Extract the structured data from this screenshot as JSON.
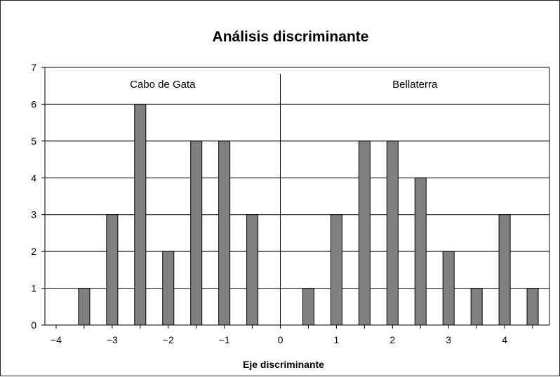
{
  "chart_data": {
    "type": "bar",
    "title": "Análisis discriminante",
    "xlabel": "Eje discriminante",
    "ylabel": "",
    "ylim": [
      0,
      7
    ],
    "xlim": [
      -4.2,
      4.8
    ],
    "x_ticks": [
      -4,
      -3,
      -2,
      -1,
      0,
      1,
      2,
      3,
      4
    ],
    "x_tick_labels": [
      "−4",
      "−3",
      "−2",
      "−1",
      "0",
      "1",
      "2",
      "3",
      "4"
    ],
    "y_ticks": [
      0,
      1,
      2,
      3,
      4,
      5,
      6,
      7
    ],
    "y_tick_labels": [
      "0",
      "1",
      "2",
      "3",
      "4",
      "5",
      "6",
      "7"
    ],
    "grid": "horizontal",
    "bar_color": "#808080",
    "groups": [
      {
        "label": "Cabo de Gata",
        "range": [
          -4.2,
          0
        ]
      },
      {
        "label": "Bellaterra",
        "range": [
          0,
          4.8
        ]
      }
    ],
    "x": [
      -3.5,
      -3.0,
      -2.5,
      -2.0,
      -1.5,
      -1.0,
      -0.5,
      0.5,
      1.0,
      1.5,
      2.0,
      2.5,
      3.0,
      3.5,
      4.0,
      4.5
    ],
    "values": [
      1,
      3,
      6,
      2,
      5,
      5,
      3,
      1,
      3,
      5,
      5,
      4,
      2,
      1,
      3,
      1
    ]
  }
}
